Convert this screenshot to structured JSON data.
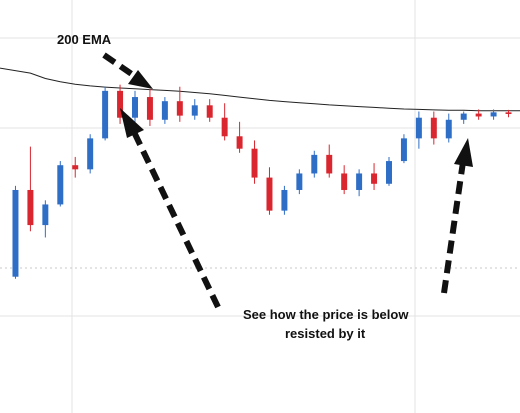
{
  "chart_data": {
    "type": "candlestick",
    "title": "",
    "xlabel": "",
    "ylabel": "",
    "ylim": [
      0,
      100
    ],
    "grid": true,
    "legend": "none",
    "colors": {
      "up": "#2e6ec6",
      "down": "#d9262f",
      "ema": "#222222",
      "grid": "#e3e3e3"
    },
    "ema": {
      "name": "200 EMA",
      "values": [
        83.5,
        82.3,
        81.0,
        80.2,
        79.6,
        79.2,
        78.9,
        78.7,
        78.5,
        78.3,
        78.1,
        77.9,
        77.6,
        77.3,
        76.9,
        76.5,
        76.1,
        75.7,
        75.4,
        75.1,
        74.9,
        74.6,
        74.4,
        74.2,
        74.0,
        73.8,
        73.6,
        73.5,
        73.4,
        73.3,
        73.3,
        73.2,
        73.2,
        73.2
      ]
    },
    "candles": [
      {
        "o": 33.0,
        "h": 55.0,
        "l": 32.5,
        "c": 54.0
      },
      {
        "o": 54.0,
        "h": 64.5,
        "l": 44.0,
        "c": 45.5
      },
      {
        "o": 45.5,
        "h": 51.5,
        "l": 42.5,
        "c": 50.5
      },
      {
        "o": 50.5,
        "h": 61.0,
        "l": 50.0,
        "c": 60.0
      },
      {
        "o": 60.0,
        "h": 62.0,
        "l": 57.0,
        "c": 59.0
      },
      {
        "o": 59.0,
        "h": 67.5,
        "l": 58.0,
        "c": 66.5
      },
      {
        "o": 66.5,
        "h": 79.0,
        "l": 66.0,
        "c": 78.0
      },
      {
        "o": 78.0,
        "h": 79.5,
        "l": 70.0,
        "c": 71.5
      },
      {
        "o": 71.5,
        "h": 78.0,
        "l": 69.0,
        "c": 76.5
      },
      {
        "o": 76.5,
        "h": 78.5,
        "l": 69.5,
        "c": 71.0
      },
      {
        "o": 71.0,
        "h": 76.5,
        "l": 70.0,
        "c": 75.5
      },
      {
        "o": 75.5,
        "h": 79.0,
        "l": 70.5,
        "c": 72.0
      },
      {
        "o": 72.0,
        "h": 76.0,
        "l": 71.0,
        "c": 74.5
      },
      {
        "o": 74.5,
        "h": 76.0,
        "l": 70.5,
        "c": 71.5
      },
      {
        "o": 71.5,
        "h": 75.0,
        "l": 66.0,
        "c": 67.0
      },
      {
        "o": 67.0,
        "h": 70.5,
        "l": 63.0,
        "c": 64.0
      },
      {
        "o": 64.0,
        "h": 66.0,
        "l": 55.5,
        "c": 57.0
      },
      {
        "o": 57.0,
        "h": 59.5,
        "l": 48.0,
        "c": 49.0
      },
      {
        "o": 49.0,
        "h": 55.0,
        "l": 48.0,
        "c": 54.0
      },
      {
        "o": 54.0,
        "h": 59.0,
        "l": 53.0,
        "c": 58.0
      },
      {
        "o": 58.0,
        "h": 63.5,
        "l": 57.0,
        "c": 62.5
      },
      {
        "o": 62.5,
        "h": 65.0,
        "l": 57.0,
        "c": 58.0
      },
      {
        "o": 58.0,
        "h": 60.0,
        "l": 53.0,
        "c": 54.0
      },
      {
        "o": 54.0,
        "h": 59.0,
        "l": 52.5,
        "c": 58.0
      },
      {
        "o": 58.0,
        "h": 60.5,
        "l": 54.0,
        "c": 55.5
      },
      {
        "o": 55.5,
        "h": 62.0,
        "l": 55.0,
        "c": 61.0
      },
      {
        "o": 61.0,
        "h": 67.5,
        "l": 60.5,
        "c": 66.5
      },
      {
        "o": 66.5,
        "h": 73.0,
        "l": 64.0,
        "c": 71.5
      },
      {
        "o": 71.5,
        "h": 73.0,
        "l": 65.0,
        "c": 66.5
      },
      {
        "o": 66.5,
        "h": 72.5,
        "l": 65.5,
        "c": 71.0
      },
      {
        "o": 71.0,
        "h": 73.0,
        "l": 70.0,
        "c": 72.5
      },
      {
        "o": 72.5,
        "h": 73.5,
        "l": 71.0,
        "c": 71.8
      },
      {
        "o": 71.8,
        "h": 73.5,
        "l": 71.0,
        "c": 72.8
      },
      {
        "o": 72.8,
        "h": 73.4,
        "l": 71.6,
        "c": 72.4
      }
    ],
    "annotations": [
      {
        "text": "200 EMA"
      },
      {
        "text": "See how the price is below"
      },
      {
        "text": "resisted by it"
      }
    ]
  }
}
